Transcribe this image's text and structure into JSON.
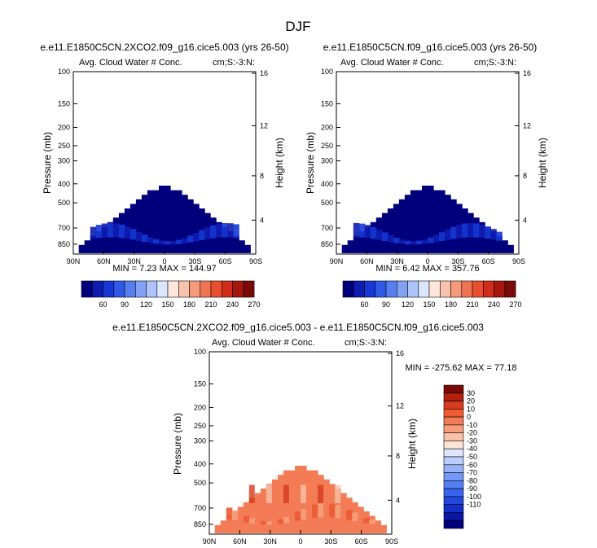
{
  "figure": {
    "title": "DJF"
  },
  "colors": {
    "seq": [
      "#00007d",
      "#0e1db0",
      "#1538d6",
      "#2f5ae8",
      "#577ef0",
      "#82a2f5",
      "#adc4fa",
      "#dbe6fc",
      "#fde7dd",
      "#f8c2ac",
      "#f59b7c",
      "#f07454",
      "#e94f2f",
      "#d12d1a",
      "#a6180d",
      "#7a0a07"
    ],
    "diff": [
      "#00007d",
      "#0a16a5",
      "#1430c8",
      "#2149e0",
      "#3763ee",
      "#537ff4",
      "#7498f6",
      "#97b1f8",
      "#bbcdfa",
      "#dde6fc",
      "#fde3d6",
      "#fac1a7",
      "#f69e7c",
      "#f37c56",
      "#ee5a33",
      "#d63b1c",
      "#b0210e",
      "#7a0a07"
    ]
  },
  "chart_data": [
    {
      "type": "heatmap",
      "title": "e.e11.E1850C5CN.2XCO2.f09_g16.cice5.003 (yrs 26-50)",
      "left_label": "Avg. Cloud Water # Conc.",
      "right_label": "cm;S:-3:N:",
      "ylabel": "Pressure (mb)",
      "ylabel_right": "Height (km)",
      "x_ticks": [
        "90N",
        "60N",
        "30N",
        "0",
        "30S",
        "60S",
        "90S"
      ],
      "y_ticks": [
        "100",
        "150",
        "200",
        "250",
        "300",
        "400",
        "500",
        "700",
        "850"
      ],
      "height_ticks": [
        "16",
        "12",
        "8",
        "4"
      ],
      "stats": "MIN =  7.23  MAX = 144.97",
      "colorbar_labels": [
        "60",
        "90",
        "120",
        "150",
        "180",
        "210",
        "240",
        "270"
      ],
      "field_min": 7.23,
      "field_max": 144.97
    },
    {
      "type": "heatmap",
      "title": "e.e11.E1850C5CN.f09_g16.cice5.003 (yrs 26-50)",
      "left_label": "Avg. Cloud Water # Conc.",
      "right_label": "cm;S:-3:N:",
      "ylabel": "Pressure (mb)",
      "ylabel_right": "Height (km)",
      "x_ticks": [
        "90N",
        "60N",
        "30N",
        "0",
        "30S",
        "60S",
        "90S"
      ],
      "y_ticks": [
        "100",
        "150",
        "200",
        "250",
        "300",
        "400",
        "500",
        "700",
        "850"
      ],
      "height_ticks": [
        "16",
        "12",
        "8",
        "4"
      ],
      "stats": "MIN =  6.42  MAX = 357.76",
      "colorbar_labels": [
        "60",
        "90",
        "120",
        "150",
        "180",
        "210",
        "240",
        "270"
      ],
      "field_min": 6.42,
      "field_max": 357.76
    },
    {
      "type": "heatmap",
      "title": "e.e11.E1850C5CN.2XCO2.f09_g16.cice5.003 - e.e11.E1850C5CN.f09_g16.cice5.003",
      "left_label": "Avg. Cloud Water # Conc.",
      "right_label": "cm;S:-3:N:",
      "ylabel": "Pressure (mb)",
      "ylabel_right": "Height (km)",
      "x_ticks": [
        "90N",
        "60N",
        "30N",
        "0",
        "30S",
        "60S",
        "90S"
      ],
      "y_ticks": [
        "100",
        "150",
        "200",
        "250",
        "300",
        "400",
        "500",
        "700",
        "850"
      ],
      "height_ticks": [
        "16",
        "12",
        "8",
        "4"
      ],
      "stats": "MIN = -275.62  MAX = 77.18",
      "colorbar_labels": [
        "30",
        "20",
        "10",
        "0",
        "-10",
        "-20",
        "-30",
        "-40",
        "-50",
        "-60",
        "-70",
        "-80",
        "-90",
        "-100",
        "-110"
      ],
      "field_min": -275.62,
      "field_max": 77.18
    }
  ]
}
